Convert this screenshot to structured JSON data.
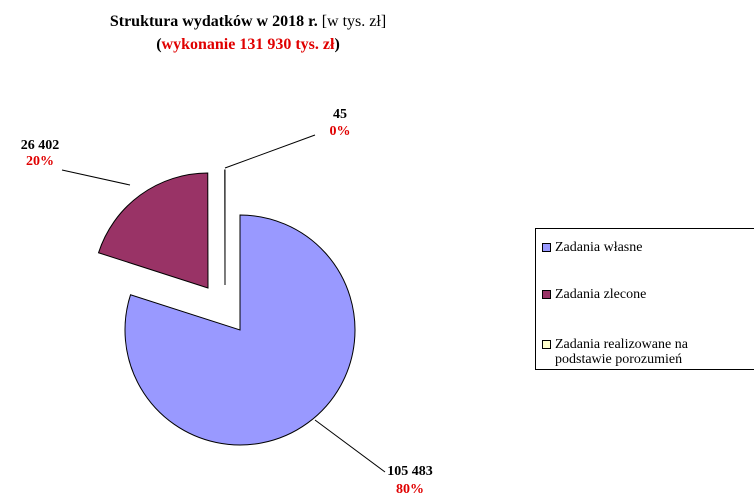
{
  "chart_data": {
    "type": "pie",
    "title": "Struktura wydatków w 2018 r.",
    "title_unit": "[w tys. zł]",
    "subtitle": "(wykonanie 131 930 tys. zł)",
    "categories": [
      "Zadania własne",
      "Zadania zlecone",
      "Zadania realizowane na podstawie porozumień"
    ],
    "values": [
      105483,
      26402,
      45
    ],
    "value_labels": [
      "105 483",
      "26 402",
      "45"
    ],
    "percents": [
      80,
      20,
      0
    ],
    "percent_labels": [
      "80%",
      "20%",
      "0%"
    ],
    "colors": [
      "#9999ff",
      "#993366",
      "#ffffcc"
    ],
    "legend": "right"
  }
}
